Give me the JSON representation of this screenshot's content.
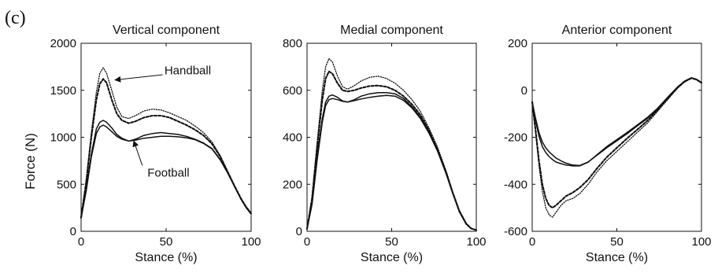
{
  "panel_label": "(c)",
  "y_axis_label": "Force (N)",
  "chart_data": [
    {
      "type": "line",
      "title": "Vertical component",
      "xlabel": "Stance (%)",
      "ylabel": "Force (N)",
      "xlim": [
        0,
        100
      ],
      "ylim": [
        0,
        2000
      ],
      "xticks": [
        "0",
        "50",
        "100"
      ],
      "yticks": [
        "0",
        "500",
        "1000",
        "1500",
        "2000"
      ],
      "annotations": [
        "Handball",
        "Football"
      ],
      "series": [
        {
          "style": "dotted",
          "x": [
            0,
            3,
            6,
            9,
            11,
            13,
            15,
            18,
            21,
            24,
            28,
            32,
            37,
            42,
            47,
            52,
            57,
            62,
            67,
            72,
            77,
            82,
            86,
            90,
            94,
            97,
            100
          ],
          "y": [
            150,
            550,
            1050,
            1480,
            1680,
            1740,
            1680,
            1500,
            1320,
            1220,
            1200,
            1230,
            1280,
            1300,
            1290,
            1260,
            1220,
            1180,
            1120,
            1050,
            950,
            800,
            640,
            480,
            340,
            250,
            180
          ]
        },
        {
          "style": "dashed",
          "x": [
            0,
            3,
            6,
            9,
            11,
            13,
            15,
            18,
            21,
            24,
            28,
            32,
            37,
            42,
            47,
            52,
            57,
            62,
            67,
            72,
            77,
            82,
            86,
            90,
            94,
            97,
            100
          ],
          "y": [
            150,
            520,
            1000,
            1400,
            1570,
            1620,
            1580,
            1400,
            1250,
            1180,
            1150,
            1170,
            1210,
            1230,
            1230,
            1210,
            1170,
            1130,
            1080,
            1020,
            930,
            790,
            640,
            490,
            350,
            260,
            190
          ]
        },
        {
          "style": "solid",
          "x": [
            0,
            3,
            6,
            9,
            11,
            13,
            15,
            18,
            21,
            24,
            28,
            32,
            37,
            42,
            47,
            52,
            57,
            62,
            67,
            72,
            77,
            82,
            86,
            90,
            94,
            97,
            100
          ],
          "y": [
            140,
            450,
            820,
            1090,
            1160,
            1180,
            1160,
            1100,
            1030,
            990,
            960,
            980,
            1020,
            1040,
            1050,
            1040,
            1030,
            1010,
            980,
            940,
            880,
            760,
            630,
            490,
            350,
            260,
            190
          ]
        },
        {
          "style": "solid",
          "x": [
            0,
            3,
            6,
            9,
            11,
            13,
            15,
            18,
            21,
            24,
            28,
            32,
            37,
            42,
            47,
            52,
            57,
            62,
            67,
            72,
            77,
            82,
            86,
            90,
            94,
            97,
            100
          ],
          "y": [
            140,
            430,
            790,
            1040,
            1110,
            1130,
            1110,
            1060,
            1010,
            980,
            960,
            970,
            990,
            1000,
            1010,
            1010,
            1005,
            995,
            975,
            935,
            875,
            755,
            625,
            485,
            345,
            255,
            185
          ]
        }
      ]
    },
    {
      "type": "line",
      "title": "Medial component",
      "xlabel": "Stance (%)",
      "ylabel": "",
      "xlim": [
        0,
        100
      ],
      "ylim": [
        0,
        800
      ],
      "xticks": [
        "0",
        "50",
        "100"
      ],
      "yticks": [
        "0",
        "200",
        "400",
        "600",
        "800"
      ],
      "series": [
        {
          "style": "dotted",
          "x": [
            0,
            3,
            6,
            9,
            11,
            13,
            15,
            18,
            21,
            24,
            28,
            32,
            37,
            42,
            47,
            52,
            57,
            62,
            67,
            72,
            77,
            82,
            86,
            90,
            94,
            97,
            100
          ],
          "y": [
            10,
            150,
            380,
            600,
            700,
            735,
            720,
            660,
            615,
            605,
            620,
            640,
            655,
            660,
            650,
            630,
            600,
            560,
            510,
            440,
            360,
            260,
            170,
            90,
            35,
            12,
            5
          ]
        },
        {
          "style": "dashed",
          "x": [
            0,
            3,
            6,
            9,
            11,
            13,
            15,
            18,
            21,
            24,
            28,
            32,
            37,
            42,
            47,
            52,
            57,
            62,
            67,
            72,
            77,
            82,
            86,
            90,
            94,
            97,
            100
          ],
          "y": [
            10,
            140,
            360,
            560,
            650,
            680,
            670,
            630,
            600,
            595,
            600,
            610,
            618,
            620,
            615,
            600,
            575,
            540,
            495,
            430,
            350,
            255,
            165,
            85,
            32,
            12,
            5
          ]
        },
        {
          "style": "solid",
          "x": [
            0,
            3,
            6,
            9,
            11,
            13,
            15,
            18,
            21,
            24,
            28,
            32,
            37,
            42,
            47,
            52,
            57,
            62,
            67,
            72,
            77,
            82,
            86,
            90,
            94,
            97,
            100
          ],
          "y": [
            10,
            120,
            320,
            480,
            550,
            575,
            580,
            570,
            555,
            550,
            560,
            575,
            585,
            590,
            590,
            585,
            565,
            530,
            485,
            420,
            345,
            250,
            165,
            85,
            32,
            12,
            5
          ]
        },
        {
          "style": "solid",
          "x": [
            0,
            3,
            6,
            9,
            11,
            13,
            15,
            18,
            21,
            24,
            28,
            32,
            37,
            42,
            47,
            52,
            57,
            62,
            67,
            72,
            77,
            82,
            86,
            90,
            94,
            97,
            100
          ],
          "y": [
            10,
            115,
            305,
            465,
            535,
            560,
            565,
            560,
            553,
            550,
            556,
            563,
            570,
            575,
            578,
            575,
            557,
            525,
            480,
            418,
            343,
            248,
            163,
            83,
            31,
            11,
            5
          ]
        }
      ]
    },
    {
      "type": "line",
      "title": "Anterior component",
      "xlabel": "Stance (%)",
      "ylabel": "",
      "xlim": [
        0,
        100
      ],
      "ylim": [
        -600,
        200
      ],
      "xticks": [
        "0",
        "50",
        "100"
      ],
      "yticks": [
        "200",
        "0",
        "-200",
        "-400",
        "-600"
      ],
      "series": [
        {
          "style": "dotted",
          "x": [
            0,
            2,
            4,
            6,
            8,
            10,
            12,
            14,
            17,
            20,
            24,
            28,
            33,
            38,
            44,
            50,
            56,
            62,
            68,
            74,
            80,
            86,
            90,
            94,
            97,
            100
          ],
          "y": [
            -50,
            -180,
            -320,
            -430,
            -500,
            -530,
            -540,
            -520,
            -490,
            -470,
            -460,
            -440,
            -400,
            -350,
            -300,
            -260,
            -220,
            -180,
            -140,
            -90,
            -40,
            10,
            35,
            50,
            45,
            30
          ]
        },
        {
          "style": "dashed",
          "x": [
            0,
            2,
            4,
            6,
            8,
            10,
            12,
            14,
            17,
            20,
            24,
            28,
            33,
            38,
            44,
            50,
            56,
            62,
            68,
            74,
            80,
            86,
            90,
            94,
            97,
            100
          ],
          "y": [
            -50,
            -170,
            -300,
            -400,
            -460,
            -490,
            -500,
            -490,
            -470,
            -450,
            -435,
            -415,
            -380,
            -335,
            -285,
            -245,
            -205,
            -168,
            -130,
            -85,
            -35,
            12,
            37,
            52,
            46,
            32
          ]
        },
        {
          "style": "solid",
          "x": [
            0,
            2,
            4,
            6,
            8,
            10,
            12,
            14,
            17,
            20,
            24,
            28,
            33,
            38,
            44,
            50,
            56,
            62,
            68,
            74,
            80,
            86,
            90,
            94,
            97,
            100
          ],
          "y": [
            -50,
            -120,
            -180,
            -220,
            -245,
            -262,
            -275,
            -288,
            -300,
            -310,
            -318,
            -320,
            -305,
            -278,
            -245,
            -215,
            -185,
            -152,
            -120,
            -80,
            -32,
            14,
            38,
            52,
            47,
            33
          ]
        },
        {
          "style": "solid",
          "x": [
            0,
            2,
            4,
            6,
            8,
            10,
            12,
            14,
            17,
            20,
            24,
            28,
            33,
            38,
            44,
            50,
            56,
            62,
            68,
            74,
            80,
            86,
            90,
            94,
            97,
            100
          ],
          "y": [
            -50,
            -130,
            -195,
            -240,
            -265,
            -282,
            -295,
            -305,
            -312,
            -318,
            -322,
            -322,
            -306,
            -276,
            -240,
            -210,
            -180,
            -148,
            -116,
            -77,
            -30,
            15,
            39,
            53,
            47,
            33
          ]
        }
      ]
    }
  ]
}
